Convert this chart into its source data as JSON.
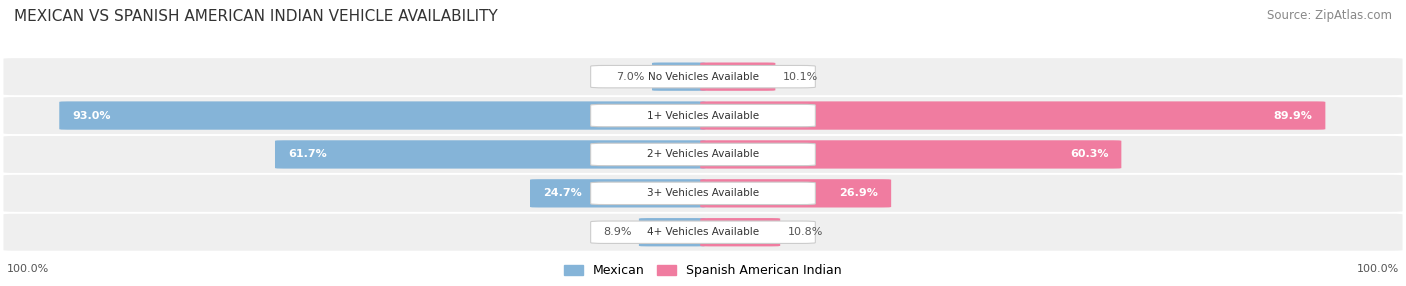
{
  "title": "MEXICAN VS SPANISH AMERICAN INDIAN VEHICLE AVAILABILITY",
  "source": "Source: ZipAtlas.com",
  "categories": [
    "No Vehicles Available",
    "1+ Vehicles Available",
    "2+ Vehicles Available",
    "3+ Vehicles Available",
    "4+ Vehicles Available"
  ],
  "mexican_values": [
    7.0,
    93.0,
    61.7,
    24.7,
    8.9
  ],
  "spanish_values": [
    10.1,
    89.9,
    60.3,
    26.9,
    10.8
  ],
  "mexican_color": "#85b4d8",
  "spanish_color": "#f07ca0",
  "bg_row_color": "#efefef",
  "label_bg_color": "#ffffff",
  "max_value": 100.0,
  "title_fontsize": 11,
  "source_fontsize": 8.5,
  "bar_label_fontsize": 8,
  "category_fontsize": 7.5,
  "legend_fontsize": 9,
  "axis_label_fontsize": 8,
  "left_100_label": "100.0%",
  "right_100_label": "100.0%"
}
